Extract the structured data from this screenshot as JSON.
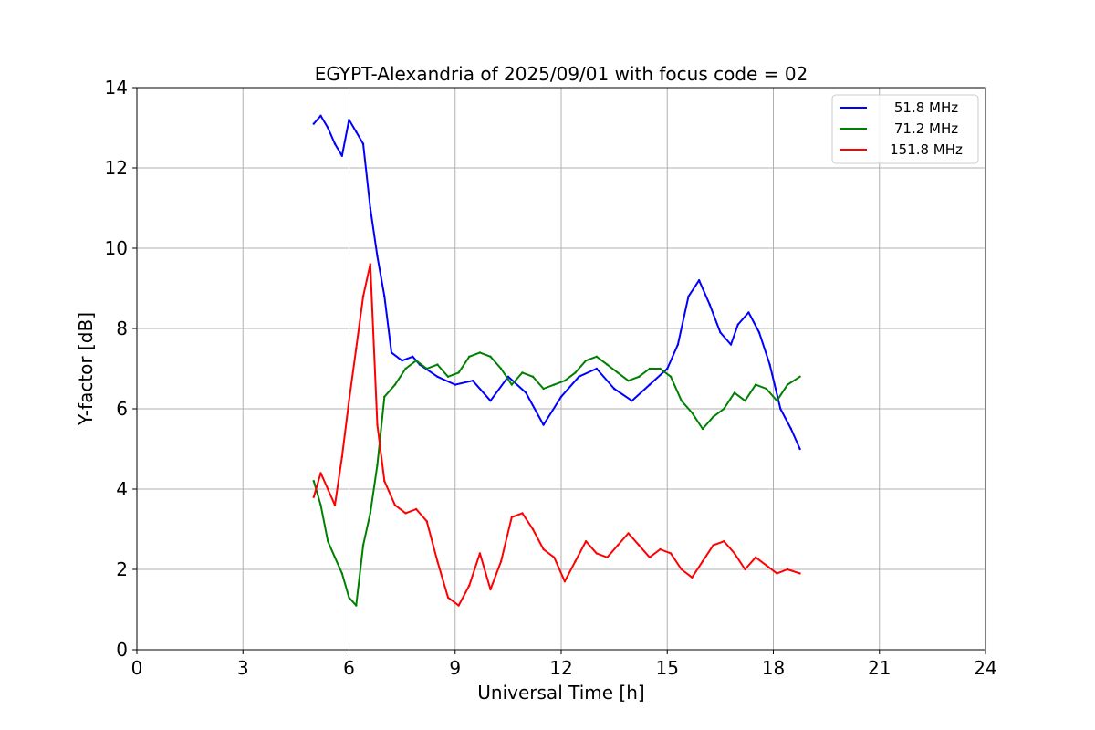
{
  "chart_data": {
    "type": "line",
    "title": "EGYPT-Alexandria of 2025/09/01 with focus code = 02",
    "xlabel": "Universal Time [h]",
    "ylabel": "Y-factor [dB]",
    "xlim": [
      0,
      24
    ],
    "ylim": [
      0,
      14
    ],
    "xticks": [
      0,
      3,
      6,
      9,
      12,
      15,
      18,
      21,
      24
    ],
    "yticks": [
      0,
      2,
      4,
      6,
      8,
      10,
      12,
      14
    ],
    "grid": true,
    "legend_position": "top-right",
    "series": [
      {
        "name": "51.8 MHz",
        "color": "#0000ff",
        "x": [
          5.0,
          5.2,
          5.4,
          5.6,
          5.8,
          6.0,
          6.2,
          6.4,
          6.6,
          6.8,
          7.0,
          7.2,
          7.5,
          7.8,
          8.0,
          8.5,
          9.0,
          9.5,
          10.0,
          10.5,
          11.0,
          11.5,
          12.0,
          12.5,
          13.0,
          13.5,
          14.0,
          14.5,
          15.0,
          15.3,
          15.6,
          15.9,
          16.2,
          16.5,
          16.8,
          17.0,
          17.3,
          17.6,
          17.9,
          18.2,
          18.5,
          18.75
        ],
        "y": [
          13.1,
          13.3,
          13.0,
          12.6,
          12.3,
          13.2,
          12.9,
          12.6,
          11.0,
          9.8,
          8.8,
          7.4,
          7.2,
          7.3,
          7.1,
          6.8,
          6.6,
          6.7,
          6.2,
          6.8,
          6.4,
          5.6,
          6.3,
          6.8,
          7.0,
          6.5,
          6.2,
          6.6,
          7.0,
          7.6,
          8.8,
          9.2,
          8.6,
          7.9,
          7.6,
          8.1,
          8.4,
          7.9,
          7.1,
          6.0,
          5.5,
          5.0
        ]
      },
      {
        "name": "71.2 MHz",
        "color": "#008000",
        "x": [
          5.0,
          5.2,
          5.4,
          5.6,
          5.8,
          6.0,
          6.2,
          6.4,
          6.6,
          6.8,
          7.0,
          7.3,
          7.6,
          7.9,
          8.2,
          8.5,
          8.8,
          9.1,
          9.4,
          9.7,
          10.0,
          10.3,
          10.6,
          10.9,
          11.2,
          11.5,
          11.8,
          12.1,
          12.4,
          12.7,
          13.0,
          13.3,
          13.6,
          13.9,
          14.2,
          14.5,
          14.8,
          15.1,
          15.4,
          15.7,
          16.0,
          16.3,
          16.6,
          16.9,
          17.2,
          17.5,
          17.8,
          18.1,
          18.4,
          18.75
        ],
        "y": [
          4.2,
          3.6,
          2.7,
          2.3,
          1.9,
          1.3,
          1.1,
          2.6,
          3.4,
          4.6,
          6.3,
          6.6,
          7.0,
          7.2,
          7.0,
          7.1,
          6.8,
          6.9,
          7.3,
          7.4,
          7.3,
          7.0,
          6.6,
          6.9,
          6.8,
          6.5,
          6.6,
          6.7,
          6.9,
          7.2,
          7.3,
          7.1,
          6.9,
          6.7,
          6.8,
          7.0,
          7.0,
          6.8,
          6.2,
          5.9,
          5.5,
          5.8,
          6.0,
          6.4,
          6.2,
          6.6,
          6.5,
          6.2,
          6.6,
          6.8
        ]
      },
      {
        "name": "151.8 MHz",
        "color": "#ff0000",
        "x": [
          5.0,
          5.2,
          5.4,
          5.6,
          5.8,
          6.0,
          6.2,
          6.4,
          6.6,
          6.8,
          7.0,
          7.3,
          7.6,
          7.9,
          8.2,
          8.5,
          8.8,
          9.1,
          9.4,
          9.7,
          10.0,
          10.3,
          10.6,
          10.9,
          11.2,
          11.5,
          11.8,
          12.1,
          12.4,
          12.7,
          13.0,
          13.3,
          13.6,
          13.9,
          14.2,
          14.5,
          14.8,
          15.1,
          15.4,
          15.7,
          16.0,
          16.3,
          16.6,
          16.9,
          17.2,
          17.5,
          17.8,
          18.1,
          18.4,
          18.75
        ],
        "y": [
          3.8,
          4.4,
          4.0,
          3.6,
          4.8,
          6.2,
          7.5,
          8.8,
          9.6,
          5.6,
          4.2,
          3.6,
          3.4,
          3.5,
          3.2,
          2.2,
          1.3,
          1.1,
          1.6,
          2.4,
          1.5,
          2.2,
          3.3,
          3.4,
          3.0,
          2.5,
          2.3,
          1.7,
          2.2,
          2.7,
          2.4,
          2.3,
          2.6,
          2.9,
          2.6,
          2.3,
          2.5,
          2.4,
          2.0,
          1.8,
          2.2,
          2.6,
          2.7,
          2.4,
          2.0,
          2.3,
          2.1,
          1.9,
          2.0,
          1.9
        ]
      }
    ]
  }
}
